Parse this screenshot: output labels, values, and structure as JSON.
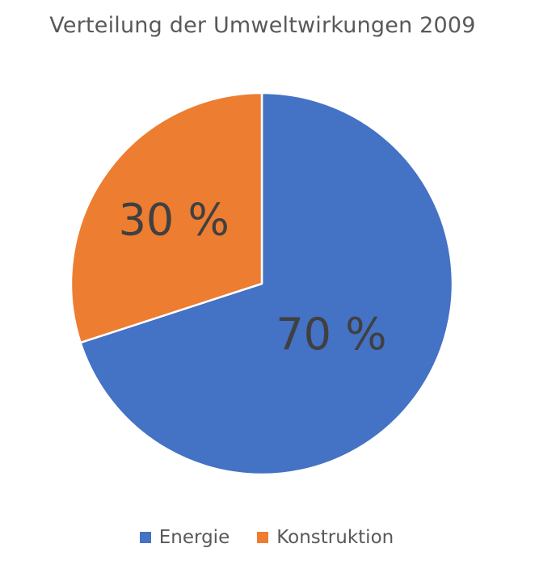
{
  "chart_data": {
    "type": "pie",
    "title": "Verteilung der Umweltwirkungen 2009",
    "categories": [
      "Energie",
      "Konstruktion"
    ],
    "values": [
      70,
      30
    ],
    "data_labels": [
      "70 %",
      "30 %"
    ],
    "colors": [
      "#4472c4",
      "#ed7d31"
    ],
    "legend_position": "bottom"
  }
}
